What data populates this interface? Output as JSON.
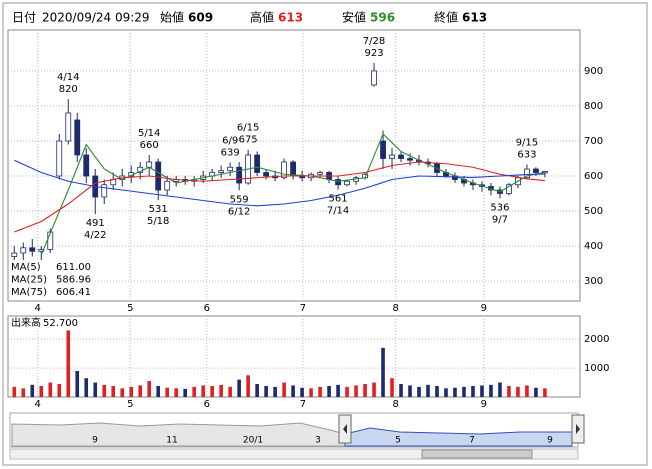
{
  "chart_data": {
    "type": "candlestick",
    "header": {
      "date_label": "日付",
      "date": "2020/09/24 09:29",
      "open_label": "始値",
      "open": 609,
      "high_label": "高値",
      "high": 613,
      "low_label": "安値",
      "low": 596,
      "close_label": "終値",
      "close": 613
    },
    "x": [
      0,
      1,
      2,
      3,
      4,
      5,
      6,
      7,
      8,
      9,
      10,
      11,
      12,
      13,
      14,
      15,
      16,
      17,
      18,
      19,
      20,
      21,
      22,
      23,
      24,
      25,
      26,
      27,
      28,
      29,
      30,
      31,
      32,
      33,
      34,
      35,
      36,
      37,
      38,
      39,
      40,
      41,
      42,
      43,
      44,
      45,
      46,
      47,
      48,
      49,
      50,
      51,
      52,
      53,
      54,
      55,
      56,
      57,
      58,
      59
    ],
    "open": [
      370,
      380,
      395,
      385,
      390,
      600,
      700,
      760,
      660,
      600,
      540,
      575,
      590,
      600,
      610,
      625,
      640,
      560,
      585,
      590,
      585,
      590,
      600,
      610,
      615,
      625,
      580,
      660,
      610,
      600,
      595,
      640,
      600,
      595,
      605,
      610,
      590,
      575,
      585,
      595,
      860,
      700,
      650,
      660,
      650,
      645,
      640,
      635,
      610,
      600,
      590,
      580,
      575,
      570,
      560,
      550,
      575,
      595,
      620,
      609
    ],
    "high": [
      400,
      410,
      420,
      400,
      450,
      720,
      820,
      780,
      680,
      620,
      590,
      610,
      620,
      630,
      640,
      660,
      650,
      600,
      600,
      600,
      600,
      615,
      620,
      630,
      639,
      640,
      675,
      670,
      620,
      615,
      650,
      645,
      615,
      610,
      615,
      615,
      600,
      590,
      600,
      610,
      923,
      730,
      680,
      670,
      665,
      660,
      650,
      640,
      620,
      610,
      600,
      590,
      585,
      580,
      570,
      580,
      600,
      633,
      625,
      613
    ],
    "low": [
      350,
      360,
      370,
      360,
      380,
      590,
      690,
      640,
      580,
      491,
      520,
      560,
      570,
      580,
      590,
      600,
      531,
      545,
      570,
      575,
      570,
      580,
      585,
      595,
      600,
      559,
      575,
      600,
      590,
      585,
      590,
      590,
      585,
      585,
      595,
      580,
      561,
      570,
      575,
      590,
      855,
      620,
      620,
      640,
      630,
      630,
      625,
      600,
      595,
      580,
      570,
      560,
      555,
      545,
      536,
      545,
      565,
      590,
      600,
      596
    ],
    "close": [
      380,
      395,
      385,
      390,
      440,
      700,
      780,
      660,
      600,
      540,
      575,
      590,
      600,
      610,
      625,
      640,
      560,
      585,
      590,
      585,
      590,
      600,
      610,
      615,
      625,
      580,
      660,
      610,
      600,
      595,
      640,
      600,
      595,
      605,
      610,
      590,
      575,
      585,
      595,
      605,
      900,
      650,
      660,
      650,
      645,
      640,
      635,
      610,
      600,
      590,
      580,
      575,
      570,
      560,
      550,
      575,
      595,
      620,
      610,
      613
    ],
    "xlim": [
      -0.7,
      62.9
    ],
    "xticks": [
      {
        "value": 2.6,
        "label": "4"
      },
      {
        "value": 12.9,
        "label": "5"
      },
      {
        "value": 21.4,
        "label": "6"
      },
      {
        "value": 32.1,
        "label": "7"
      },
      {
        "value": 42.4,
        "label": "8"
      },
      {
        "value": 52.2,
        "label": "9"
      }
    ],
    "ylim": [
      243,
      1017
    ],
    "yticks": [
      300,
      400,
      500,
      600,
      700,
      800,
      900
    ],
    "grid": true,
    "up_color": "#ffffff",
    "down_color": "#1c2a6e",
    "ma": [
      {
        "name": "MA(5)",
        "color": "#2e8b2e",
        "value": 611,
        "value_label": "611.00",
        "x": [
          3,
          6,
          8,
          10,
          12,
          15,
          18,
          21,
          24,
          27,
          30,
          33,
          36,
          39,
          41,
          43,
          45,
          48,
          51,
          54,
          57,
          59
        ],
        "values": [
          375,
          560,
          690,
          620,
          590,
          625,
          580,
          595,
          610,
          625,
          605,
          600,
          585,
          595,
          720,
          670,
          645,
          610,
          580,
          555,
          600,
          611
        ]
      },
      {
        "name": "MA(25)",
        "color": "#e02020",
        "value": 586.96,
        "value_label": "586.96",
        "x": [
          0,
          3,
          6,
          9,
          12,
          15,
          18,
          21,
          24,
          27,
          30,
          33,
          36,
          39,
          42,
          45,
          48,
          51,
          54,
          57,
          59
        ],
        "values": [
          440,
          470,
          520,
          580,
          595,
          600,
          590,
          585,
          590,
          595,
          600,
          600,
          600,
          610,
          630,
          640,
          635,
          625,
          605,
          592,
          587
        ]
      },
      {
        "name": "MA(75)",
        "color": "#2040d0",
        "value": 606.41,
        "value_label": "606.41",
        "x": [
          0,
          3,
          6,
          9,
          12,
          15,
          18,
          21,
          24,
          27,
          30,
          33,
          36,
          39,
          42,
          45,
          48,
          51,
          54,
          57,
          59
        ],
        "values": [
          645,
          610,
          585,
          570,
          560,
          550,
          540,
          530,
          520,
          515,
          520,
          530,
          545,
          565,
          590,
          600,
          598,
          596,
          600,
          604,
          606
        ]
      }
    ],
    "annotations": [
      {
        "date": "4/14",
        "value": 820
      },
      {
        "date": "4/22",
        "value": 491
      },
      {
        "date": "5/14",
        "value": 660
      },
      {
        "date": "5/18",
        "value": 531
      },
      {
        "date": "6/9",
        "value": 639
      },
      {
        "date": "6/12",
        "value": 559
      },
      {
        "date": "6/15",
        "value": 675
      },
      {
        "date": "7/14",
        "value": 561
      },
      {
        "date": "7/28",
        "value": 923
      },
      {
        "date": "9/7",
        "value": 536
      },
      {
        "date": "9/15",
        "value": 633
      }
    ],
    "volume": {
      "label": "出来高",
      "value": 52.7,
      "value_label": "52.700",
      "values": [
        350,
        300,
        420,
        380,
        500,
        450,
        2300,
        900,
        650,
        500,
        420,
        380,
        300,
        350,
        400,
        550,
        380,
        320,
        300,
        280,
        350,
        400,
        380,
        420,
        350,
        600,
        750,
        450,
        380,
        350,
        500,
        400,
        320,
        300,
        350,
        380,
        420,
        350,
        400,
        450,
        500,
        1700,
        650,
        450,
        400,
        350,
        420,
        380,
        300,
        320,
        350,
        380,
        400,
        420,
        500,
        380,
        350,
        400,
        320,
        300
      ],
      "ylim": [
        0,
        2800
      ],
      "yticks": [
        1000,
        2000
      ],
      "up_color": "#e02020",
      "down_color": "#1c2a6e"
    },
    "navigator": {
      "labels": [
        "9",
        "11",
        "20/1",
        "3",
        "5",
        "7",
        "9"
      ]
    }
  }
}
